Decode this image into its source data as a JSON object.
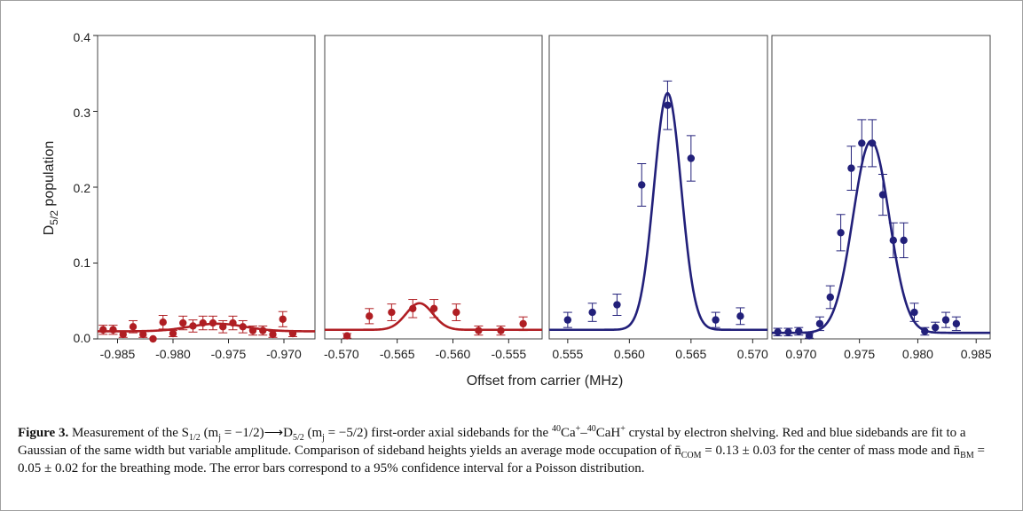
{
  "ylabel_main": "D",
  "ylabel_sub": "5/2",
  "ylabel_rest": " population",
  "xlabel": "Offset from carrier (MHz)",
  "colors": {
    "red": "#b01e23",
    "blue": "#22207a",
    "frame": "#444444"
  },
  "y_ticks": [
    "0.0",
    "0.1",
    "0.2",
    "0.3",
    "0.4"
  ],
  "chart_data": [
    {
      "type": "scatter",
      "panel": "red-com",
      "color": "red",
      "xlim": [
        -0.9868,
        -0.9672
      ],
      "ylim": [
        0,
        0.4
      ],
      "xticks": [
        -0.985,
        -0.98,
        -0.975,
        -0.97
      ],
      "xtick_labels": [
        "-0.985",
        "-0.980",
        "-0.975",
        "-0.970"
      ],
      "points": [
        {
          "x": -0.9863,
          "y": 0.012,
          "err": 0.006
        },
        {
          "x": -0.9854,
          "y": 0.012,
          "err": 0.006
        },
        {
          "x": -0.9845,
          "y": 0.006,
          "err": 0.004
        },
        {
          "x": -0.9836,
          "y": 0.016,
          "err": 0.008
        },
        {
          "x": -0.9827,
          "y": 0.006,
          "err": 0.004
        },
        {
          "x": -0.9818,
          "y": 0.0,
          "err": 0.0
        },
        {
          "x": -0.9809,
          "y": 0.022,
          "err": 0.009
        },
        {
          "x": -0.98,
          "y": 0.007,
          "err": 0.004
        },
        {
          "x": -0.9791,
          "y": 0.021,
          "err": 0.009
        },
        {
          "x": -0.9782,
          "y": 0.017,
          "err": 0.008
        },
        {
          "x": -0.9773,
          "y": 0.021,
          "err": 0.009
        },
        {
          "x": -0.9764,
          "y": 0.021,
          "err": 0.009
        },
        {
          "x": -0.9755,
          "y": 0.016,
          "err": 0.008
        },
        {
          "x": -0.9746,
          "y": 0.021,
          "err": 0.009
        },
        {
          "x": -0.9737,
          "y": 0.016,
          "err": 0.008
        },
        {
          "x": -0.9728,
          "y": 0.011,
          "err": 0.006
        },
        {
          "x": -0.9719,
          "y": 0.011,
          "err": 0.006
        },
        {
          "x": -0.971,
          "y": 0.006,
          "err": 0.004
        },
        {
          "x": -0.9701,
          "y": 0.026,
          "err": 0.01
        },
        {
          "x": -0.9692,
          "y": 0.007,
          "err": 0.004
        }
      ],
      "fit": {
        "amp": 0.01,
        "center": -0.976,
        "sigma": 0.0025,
        "offset": 0.01
      }
    },
    {
      "type": "scatter",
      "panel": "red-bm",
      "color": "red",
      "xlim": [
        -0.5715,
        -0.552
      ],
      "ylim": [
        0,
        0.4
      ],
      "xticks": [
        -0.57,
        -0.565,
        -0.56,
        -0.555
      ],
      "xtick_labels": [
        "-0.570",
        "-0.565",
        "-0.560",
        "-0.555"
      ],
      "points": [
        {
          "x": -0.5695,
          "y": 0.004,
          "err": 0.003
        },
        {
          "x": -0.5675,
          "y": 0.03,
          "err": 0.01
        },
        {
          "x": -0.5655,
          "y": 0.035,
          "err": 0.011
        },
        {
          "x": -0.5636,
          "y": 0.04,
          "err": 0.012
        },
        {
          "x": -0.5617,
          "y": 0.04,
          "err": 0.012
        },
        {
          "x": -0.5597,
          "y": 0.035,
          "err": 0.011
        },
        {
          "x": -0.5577,
          "y": 0.011,
          "err": 0.006
        },
        {
          "x": -0.5557,
          "y": 0.011,
          "err": 0.006
        },
        {
          "x": -0.5537,
          "y": 0.02,
          "err": 0.009
        }
      ],
      "fit": {
        "amp": 0.035,
        "center": -0.563,
        "sigma": 0.0012,
        "offset": 0.012
      }
    },
    {
      "type": "scatter",
      "panel": "blue-bm",
      "color": "blue",
      "xlim": [
        0.5535,
        0.5712
      ],
      "ylim": [
        0,
        0.4
      ],
      "xticks": [
        0.555,
        0.56,
        0.565,
        0.57
      ],
      "xtick_labels": [
        "0.555",
        "0.560",
        "0.565",
        "0.570"
      ],
      "points": [
        {
          "x": 0.555,
          "y": 0.025,
          "err": 0.01
        },
        {
          "x": 0.557,
          "y": 0.035,
          "err": 0.012
        },
        {
          "x": 0.559,
          "y": 0.045,
          "err": 0.014
        },
        {
          "x": 0.561,
          "y": 0.203,
          "err": 0.028
        },
        {
          "x": 0.5631,
          "y": 0.308,
          "err": 0.032
        },
        {
          "x": 0.565,
          "y": 0.238,
          "err": 0.03
        },
        {
          "x": 0.567,
          "y": 0.025,
          "err": 0.01
        },
        {
          "x": 0.569,
          "y": 0.03,
          "err": 0.011
        }
      ],
      "fit": {
        "amp": 0.312,
        "center": 0.5631,
        "sigma": 0.0011,
        "offset": 0.012
      }
    },
    {
      "type": "scatter",
      "panel": "blue-com",
      "color": "blue",
      "xlim": [
        0.9675,
        0.9862
      ],
      "ylim": [
        0,
        0.4
      ],
      "xticks": [
        0.97,
        0.975,
        0.98,
        0.985
      ],
      "xtick_labels": [
        "0.970",
        "0.975",
        "0.980",
        "0.985"
      ],
      "points": [
        {
          "x": 0.968,
          "y": 0.009,
          "err": 0.005
        },
        {
          "x": 0.9689,
          "y": 0.009,
          "err": 0.005
        },
        {
          "x": 0.9698,
          "y": 0.01,
          "err": 0.005
        },
        {
          "x": 0.9707,
          "y": 0.004,
          "err": 0.003
        },
        {
          "x": 0.9716,
          "y": 0.02,
          "err": 0.009
        },
        {
          "x": 0.9725,
          "y": 0.055,
          "err": 0.015
        },
        {
          "x": 0.9734,
          "y": 0.14,
          "err": 0.024
        },
        {
          "x": 0.9743,
          "y": 0.225,
          "err": 0.029
        },
        {
          "x": 0.9752,
          "y": 0.258,
          "err": 0.031
        },
        {
          "x": 0.9761,
          "y": 0.258,
          "err": 0.031
        },
        {
          "x": 0.977,
          "y": 0.19,
          "err": 0.027
        },
        {
          "x": 0.9779,
          "y": 0.13,
          "err": 0.023
        },
        {
          "x": 0.9788,
          "y": 0.13,
          "err": 0.023
        },
        {
          "x": 0.9797,
          "y": 0.035,
          "err": 0.012
        },
        {
          "x": 0.9806,
          "y": 0.01,
          "err": 0.005
        },
        {
          "x": 0.9815,
          "y": 0.015,
          "err": 0.007
        },
        {
          "x": 0.9824,
          "y": 0.025,
          "err": 0.01
        },
        {
          "x": 0.9833,
          "y": 0.02,
          "err": 0.009
        }
      ],
      "fit": {
        "amp": 0.253,
        "center": 0.976,
        "sigma": 0.00155,
        "offset": 0.008
      }
    }
  ],
  "caption": {
    "label": "Figure 3.",
    "p1": " Measurement of the S",
    "s1": "1/2",
    "p2": " (m",
    "s2": "j",
    "p3": " = −1/2)⟶D",
    "s3": "5/2",
    "p4": " (m",
    "s4": "j",
    "p5": " = −5/2) first-order axial sidebands for the ",
    "sup1": "40",
    "p6": "Ca",
    "sup2": "+",
    "p7": "–",
    "sup3": "40",
    "p8": "CaH",
    "sup4": "+",
    "p9": " crystal by electron shelving. Red and blue sidebands are fit to a Gaussian of the same width but variable amplitude. Comparison of sideband heights yields an average mode occupation of n̄",
    "s5": "COM",
    "p10": " = 0.13 ± 0.03 for the center of mass mode and n̄",
    "s6": "BM",
    "p11": " = 0.05 ± 0.02 for the breathing mode. The error bars correspond to a 95% confidence interval for a Poisson distribution."
  }
}
